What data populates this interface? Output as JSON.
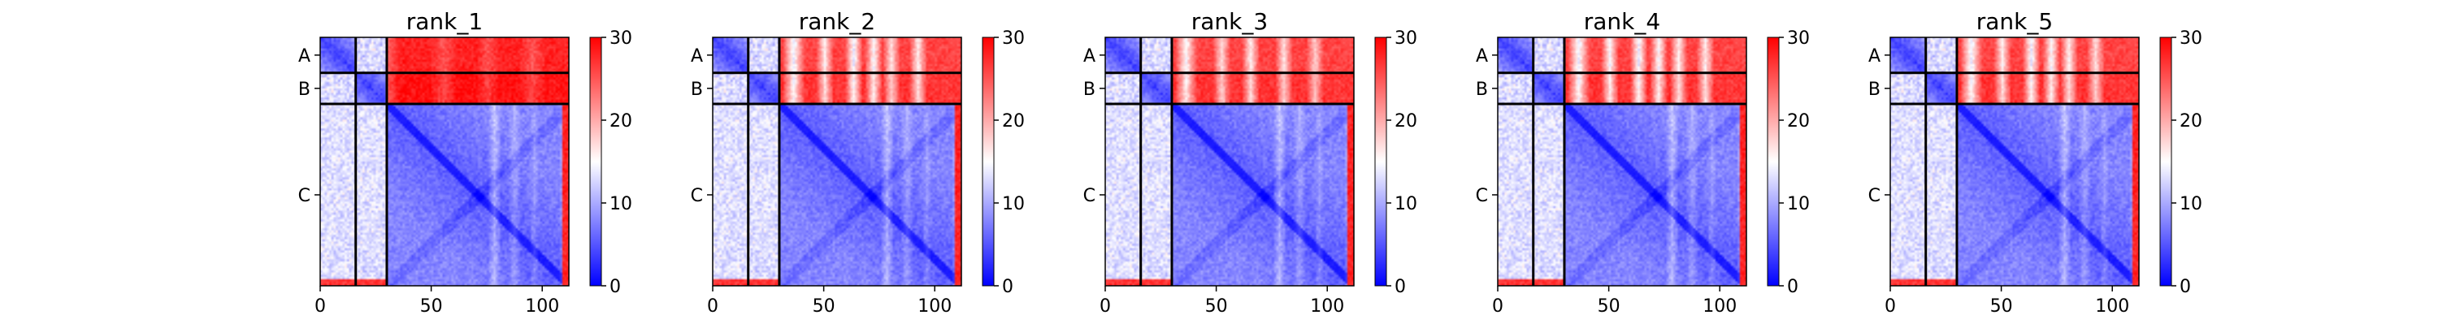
{
  "chart_data": {
    "type": "heatmap",
    "shared": {
      "chain_labels": [
        "A",
        "B",
        "C"
      ],
      "chain_boundaries": [
        0,
        16,
        30,
        112
      ],
      "x_range": [
        0,
        112
      ],
      "x_ticks": [
        0,
        50,
        100
      ],
      "colorbar": {
        "min": 0,
        "max": 30,
        "ticks": [
          0,
          10,
          20,
          30
        ],
        "colors": [
          "#0000ff",
          "#ffffff",
          "#ff0000"
        ]
      }
    },
    "panels": [
      {
        "title": "rank_1",
        "ab_background": 26,
        "ab_dips": [
          {
            "center": 30,
            "width": 5,
            "depth": 4
          },
          {
            "center": 55,
            "width": 6,
            "depth": 3
          },
          {
            "center": 75,
            "width": 5,
            "depth": 3
          },
          {
            "center": 95,
            "width": 6,
            "depth": 3
          }
        ]
      },
      {
        "title": "rank_2",
        "ab_background": 24,
        "ab_dips": [
          {
            "center": 36,
            "width": 5,
            "depth": 12
          },
          {
            "center": 50,
            "width": 4,
            "depth": 10
          },
          {
            "center": 63,
            "width": 4,
            "depth": 12
          },
          {
            "center": 72,
            "width": 4,
            "depth": 11
          },
          {
            "center": 80,
            "width": 4,
            "depth": 9
          },
          {
            "center": 92,
            "width": 4,
            "depth": 10
          }
        ]
      },
      {
        "title": "rank_3",
        "ab_background": 24,
        "ab_dips": [
          {
            "center": 36,
            "width": 5,
            "depth": 11
          },
          {
            "center": 52,
            "width": 4,
            "depth": 9
          },
          {
            "center": 65,
            "width": 4,
            "depth": 10
          },
          {
            "center": 80,
            "width": 4,
            "depth": 9
          },
          {
            "center": 94,
            "width": 4,
            "depth": 8
          }
        ]
      },
      {
        "title": "rank_4",
        "ab_background": 24,
        "ab_dips": [
          {
            "center": 36,
            "width": 5,
            "depth": 12
          },
          {
            "center": 50,
            "width": 4,
            "depth": 11
          },
          {
            "center": 63,
            "width": 4,
            "depth": 12
          },
          {
            "center": 72,
            "width": 4,
            "depth": 11
          },
          {
            "center": 81,
            "width": 4,
            "depth": 10
          },
          {
            "center": 93,
            "width": 4,
            "depth": 10
          }
        ]
      },
      {
        "title": "rank_5",
        "ab_background": 24,
        "ab_dips": [
          {
            "center": 36,
            "width": 5,
            "depth": 12
          },
          {
            "center": 50,
            "width": 4,
            "depth": 10
          },
          {
            "center": 63,
            "width": 4,
            "depth": 12
          },
          {
            "center": 72,
            "width": 4,
            "depth": 11
          },
          {
            "center": 80,
            "width": 4,
            "depth": 10
          },
          {
            "center": 92,
            "width": 4,
            "depth": 9
          }
        ]
      }
    ]
  }
}
